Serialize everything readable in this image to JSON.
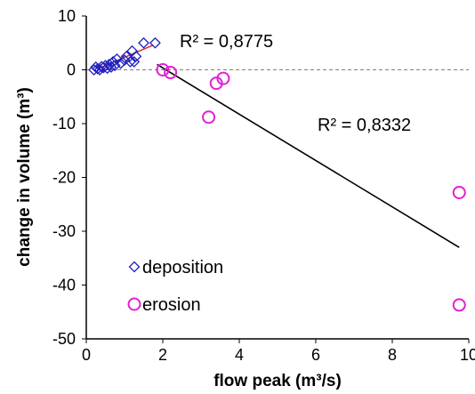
{
  "chart_data": {
    "type": "scatter",
    "xlabel": "flow peak (m³/s)",
    "ylabel": "change in volume (m³)",
    "xlim": [
      0,
      10
    ],
    "ylim": [
      -50,
      10
    ],
    "x_ticks": [
      "0",
      "2",
      "4",
      "6",
      "8",
      "10"
    ],
    "y_ticks": [
      "10",
      "0",
      "-10",
      "-20",
      "-30",
      "-40",
      "-50"
    ],
    "grid": false,
    "zero_reference_line": "dashed gray at y = 0",
    "legend": {
      "position": "lower-left",
      "entries": [
        "deposition",
        "erosion"
      ]
    },
    "series": [
      {
        "name": "deposition",
        "marker": "diamond-open",
        "color": "#1f1fbf",
        "points": [
          [
            0.2,
            0.0
          ],
          [
            0.25,
            0.5
          ],
          [
            0.3,
            0.2
          ],
          [
            0.35,
            0.0
          ],
          [
            0.4,
            0.6
          ],
          [
            0.45,
            0.4
          ],
          [
            0.5,
            0.8
          ],
          [
            0.55,
            0.3
          ],
          [
            0.6,
            1.0
          ],
          [
            0.65,
            0.5
          ],
          [
            0.7,
            1.5
          ],
          [
            0.75,
            0.8
          ],
          [
            0.8,
            2.0
          ],
          [
            0.9,
            1.2
          ],
          [
            1.0,
            1.8
          ],
          [
            1.05,
            2.5
          ],
          [
            1.15,
            1.5
          ],
          [
            1.2,
            3.5
          ],
          [
            1.25,
            1.5
          ],
          [
            1.3,
            2.5
          ],
          [
            1.5,
            5.0
          ],
          [
            1.8,
            5.0
          ]
        ],
        "trendline": {
          "x": [
            0.3,
            1.75
          ],
          "y": [
            0.2,
            4.6
          ],
          "color": "#d9262c"
        },
        "r2_label": "R² = 0,8775"
      },
      {
        "name": "erosion",
        "marker": "circle-open",
        "color": "#e21fd6",
        "points": [
          [
            2.0,
            0.0
          ],
          [
            2.2,
            -0.5
          ],
          [
            3.2,
            -8.8
          ],
          [
            3.4,
            -2.5
          ],
          [
            3.58,
            -1.6
          ],
          [
            9.75,
            -22.8
          ],
          [
            9.75,
            -43.7
          ]
        ],
        "trendline": {
          "x": [
            1.85,
            9.75
          ],
          "y": [
            1.0,
            -33.0
          ],
          "color": "#000000"
        },
        "r2_label": "R² = 0,8332"
      }
    ]
  }
}
